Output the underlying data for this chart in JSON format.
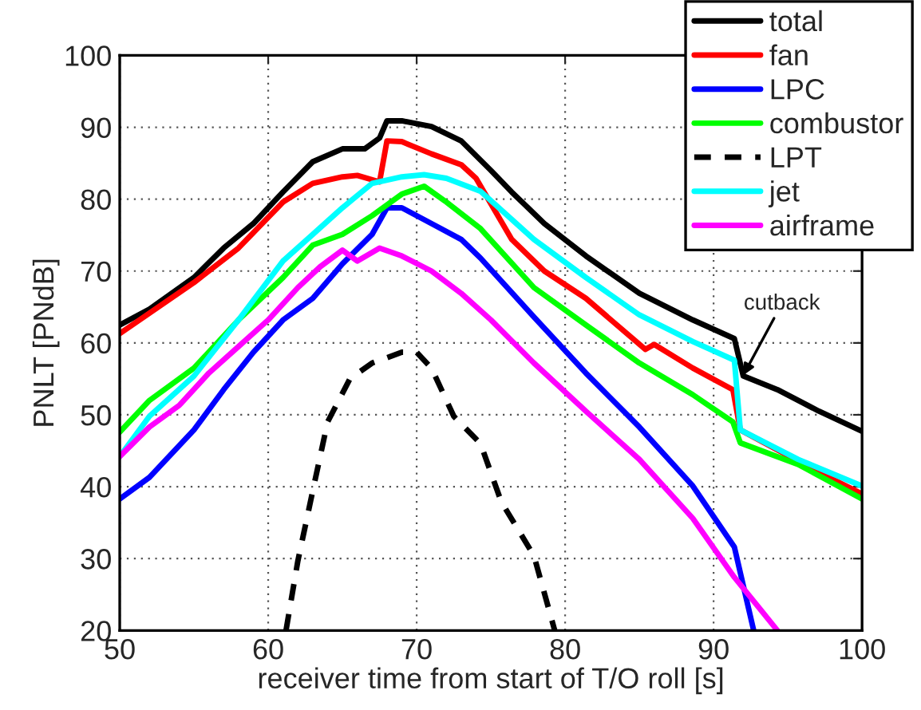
{
  "chart_data": {
    "type": "line",
    "xlabel": "receiver time from start of T/O roll [s]",
    "ylabel": "PNLT [PNdB]",
    "xlim": [
      50,
      100
    ],
    "ylim": [
      20,
      100
    ],
    "xticks": [
      50,
      60,
      70,
      80,
      90,
      100
    ],
    "yticks": [
      20,
      30,
      40,
      50,
      60,
      70,
      80,
      90,
      100
    ],
    "grid": true,
    "legend": "top right",
    "line_style": "solid",
    "marker": "none",
    "annotations": [
      {
        "text": "cutback",
        "x": 92,
        "y": 55.5
      }
    ],
    "series": [
      {
        "name": "total",
        "color": "#000000",
        "x": [
          50,
          52,
          55,
          57,
          59,
          61,
          63,
          65,
          66.5,
          67.5,
          68,
          69,
          71,
          73,
          75,
          76.4,
          78.6,
          81.4,
          85,
          88.6,
          91.4,
          92,
          94.3,
          97.1,
          100
        ],
        "values": [
          62.5,
          64.7,
          69.1,
          73.2,
          76.6,
          81,
          85.2,
          87,
          87,
          88.5,
          90.9,
          90.9,
          90.1,
          88.1,
          84,
          81,
          76.6,
          72.1,
          66.9,
          63.2,
          60.6,
          55.4,
          53.5,
          50.5,
          47.7
        ]
      },
      {
        "name": "fan",
        "color": "#ff0000",
        "x": [
          50,
          55,
          58,
          61,
          63,
          65,
          66,
          67.5,
          68,
          69,
          71,
          73,
          74,
          76.4,
          78.6,
          81.4,
          85.4,
          86,
          88.6,
          91.3,
          91.8,
          97.1,
          100
        ],
        "values": [
          61.3,
          68.4,
          73.2,
          79.6,
          82.2,
          83.1,
          83.3,
          82.4,
          88.1,
          88,
          86.3,
          84.8,
          82.9,
          74.4,
          70,
          66.2,
          59.1,
          59.8,
          56.5,
          53.5,
          47.9,
          42,
          39
        ]
      },
      {
        "name": "LPC",
        "color": "#0000ff",
        "x": [
          50,
          52,
          53.5,
          55,
          57,
          59,
          61,
          63,
          65,
          67,
          68,
          69,
          71,
          73,
          74.3,
          77.9,
          81.4,
          85,
          88.6,
          91.4,
          92.7
        ],
        "values": [
          38.3,
          41.3,
          44.6,
          47.9,
          53.5,
          58.7,
          63.2,
          66.2,
          71,
          75.1,
          78.8,
          78.8,
          76.6,
          74.4,
          71.8,
          63.6,
          55.8,
          48.3,
          40.1,
          31.6,
          20
        ]
      },
      {
        "name": "combustor",
        "color": "#00ff00",
        "x": [
          50,
          52,
          55,
          58,
          61,
          63,
          65,
          67,
          69,
          70.5,
          72,
          74.3,
          77.9,
          81.4,
          85,
          88.6,
          91.3,
          91.8,
          95.7,
          100
        ],
        "values": [
          47.6,
          52,
          56.5,
          63.2,
          69.1,
          73.6,
          75.1,
          77.7,
          80.7,
          81.8,
          79.6,
          75.9,
          67.7,
          62.5,
          57.2,
          52.8,
          49,
          46.1,
          43.1,
          38.3
        ]
      },
      {
        "name": "LPT",
        "color": "#000000",
        "line_style": "dashed",
        "x": [
          61.2,
          62,
          63,
          64,
          65.5,
          67,
          69,
          70,
          71,
          72.5,
          74.3,
          75.7,
          77.9,
          79.3
        ],
        "values": [
          20,
          29.7,
          39.4,
          49,
          55,
          57.2,
          58.7,
          58.7,
          56.5,
          49.8,
          46,
          37.9,
          30.4,
          20
        ]
      },
      {
        "name": "jet",
        "color": "#00ffff",
        "x": [
          50,
          52,
          55,
          58,
          61,
          63,
          65,
          67,
          69,
          70.5,
          72,
          74.3,
          77.9,
          81.4,
          85,
          88.6,
          91.4,
          91.8,
          95.7,
          100
        ],
        "values": [
          44.2,
          49.8,
          55.4,
          63.2,
          71.4,
          75.1,
          78.8,
          82.2,
          83.1,
          83.4,
          82.9,
          81.1,
          74.4,
          69.1,
          63.9,
          60.2,
          57.6,
          47.9,
          43.8,
          40.1
        ]
      },
      {
        "name": "airframe",
        "color": "#ff00ff",
        "x": [
          50,
          52,
          54,
          56,
          58,
          60,
          62,
          63.5,
          65,
          66,
          67.5,
          69,
          71,
          73,
          75,
          77.9,
          81.4,
          85,
          88.6,
          91.4,
          94.3
        ],
        "values": [
          44.2,
          48.3,
          51.3,
          55.8,
          59.5,
          63.2,
          67.7,
          70.6,
          72.9,
          71.4,
          73.2,
          72.1,
          70,
          66.9,
          63.2,
          57.2,
          50.5,
          43.8,
          35.6,
          27.4,
          20
        ]
      }
    ]
  }
}
